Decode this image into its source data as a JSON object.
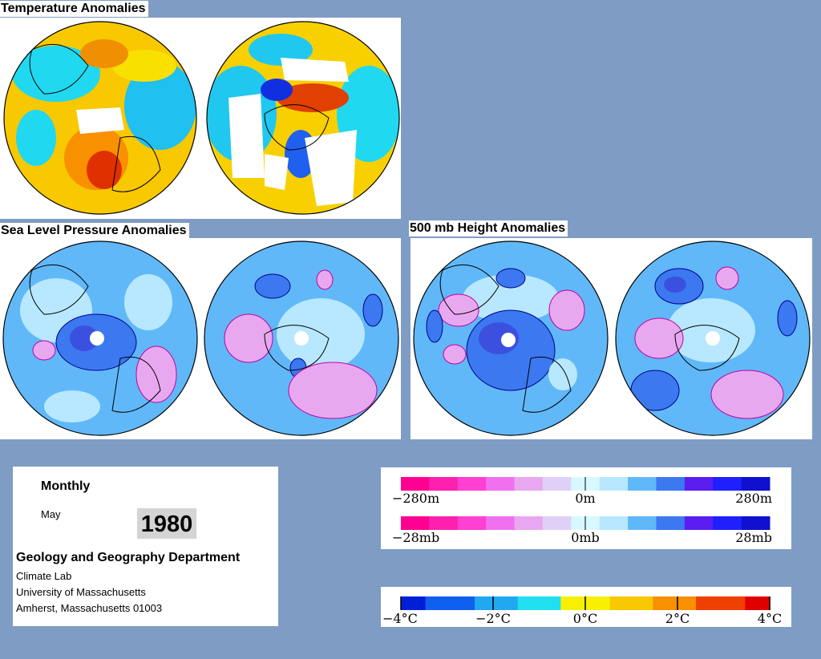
{
  "titles": {
    "temperature": "Temperature Anomalies",
    "slp": "Sea Level Pressure Anomalies",
    "height": "500 mb Height Anomalies"
  },
  "info": {
    "period": "Monthly",
    "month": "May",
    "year": "1980",
    "department": "Geology and Geography Department",
    "lines": [
      "Climate Lab",
      "University of Massachusetts",
      "Amherst, Massachusetts 01003"
    ]
  },
  "legends": {
    "height": {
      "min": "−280m",
      "mid": "0m",
      "max": "280m"
    },
    "pressure": {
      "min": "−28mb",
      "mid": "0mb",
      "max": "28mb"
    },
    "temperature": {
      "ticks": [
        "−4°C",
        "−2°C",
        "0°C",
        "2°C",
        "4°C"
      ]
    }
  },
  "colors": {
    "background": "#7f9cc4",
    "anomaly_scale": [
      "#ff0090",
      "#ff20b0",
      "#ff40d0",
      "#f070f0",
      "#e8a8f0",
      "#e0d0f8",
      "#d8f8ff",
      "#b8e8ff",
      "#60b8f8",
      "#3c78f0",
      "#5a1ef0",
      "#2020ff",
      "#1010d0"
    ],
    "temperature_scale": [
      "#0020d8",
      "#1060f0",
      "#20a8f0",
      "#20e0f0",
      "#f8f000",
      "#f8c800",
      "#f89000",
      "#f04000",
      "#e00000"
    ]
  }
}
